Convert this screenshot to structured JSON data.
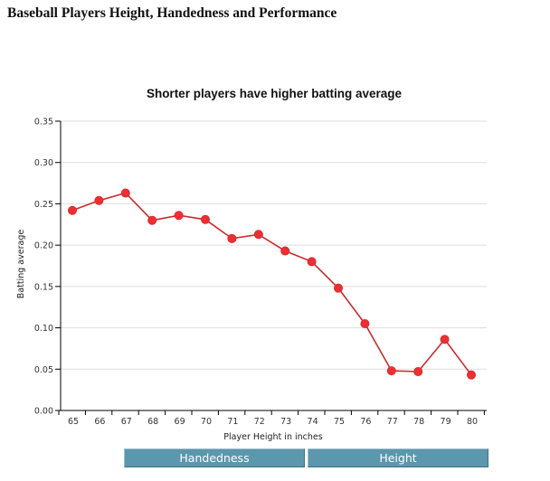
{
  "page": {
    "header": "Baseball Players Height, Handedness and Performance"
  },
  "chart_data": {
    "type": "line",
    "title": "Shorter players have higher batting average",
    "xlabel": "Player Height in inches",
    "ylabel": "Batting average",
    "x": [
      65,
      66,
      67,
      68,
      69,
      70,
      71,
      72,
      73,
      74,
      75,
      76,
      77,
      78,
      79,
      80
    ],
    "x_tick_labels": [
      "65",
      "66",
      "67",
      "68",
      "69",
      "70",
      "71",
      "72",
      "73",
      "74",
      "75",
      "76",
      "77",
      "78",
      "79",
      "80"
    ],
    "y": [
      0.242,
      0.254,
      0.263,
      0.23,
      0.236,
      0.231,
      0.208,
      0.213,
      0.193,
      0.18,
      0.148,
      0.105,
      0.048,
      0.047,
      0.086,
      0.043
    ],
    "ylim": [
      0,
      0.35
    ],
    "y_ticks": [
      0,
      0.05,
      0.1,
      0.15,
      0.2,
      0.25,
      0.3,
      0.35
    ],
    "y_tick_labels": [
      "0.00",
      "0.05",
      "0.10",
      "0.15",
      "0.20",
      "0.25",
      "0.30",
      "0.35"
    ],
    "grid": "horizontal",
    "line_color": "#cc2b2b",
    "marker_color": "#ee2e34"
  },
  "buttons": {
    "handedness": "Handedness",
    "height": "Height"
  },
  "colors": {
    "button_bg": "#5b97ad",
    "button_text": "#ffffff"
  }
}
